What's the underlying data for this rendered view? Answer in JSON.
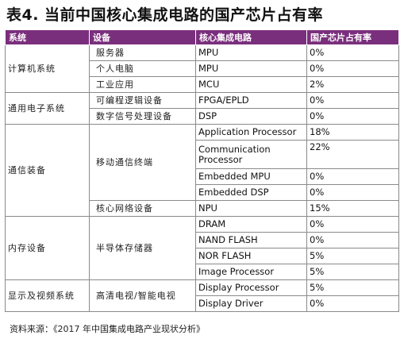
{
  "title": "表4. 当前中国核心集成电路的国产芯片占有率",
  "headers": [
    "系统",
    "设备",
    "核心集成电路",
    "国产芯片占有率"
  ],
  "groups": {
    "computer": {
      "system": "计算机系统",
      "rows": [
        {
          "device": "服务器",
          "chip": "MPU",
          "rate": "0%"
        },
        {
          "device": "个人电脑",
          "chip": "MPU",
          "rate": "0%"
        },
        {
          "device": "工业应用",
          "chip": "MCU",
          "rate": "2%"
        }
      ]
    },
    "electronics": {
      "system": "通用电子系统",
      "rows": [
        {
          "device": "可编程逻辑设备",
          "chip": "FPGA/EPLD",
          "rate": "0%"
        },
        {
          "device": "数字信号处理设备",
          "chip": "DSP",
          "rate": "0%"
        }
      ]
    },
    "comm": {
      "system": "通信装备",
      "mobile_device": "移动通信终端",
      "mobile_rows": [
        {
          "chip": "Application Processor",
          "rate": "18%"
        },
        {
          "chip": "Communication Processor",
          "rate": "22%"
        },
        {
          "chip": "Embedded MPU",
          "rate": "0%"
        },
        {
          "chip": "Embedded DSP",
          "rate": "0%"
        }
      ],
      "network_row": {
        "device": "核心网络设备",
        "chip": "NPU",
        "rate": "15%"
      }
    },
    "memory": {
      "system": "内存设备",
      "device": "半导体存储器",
      "rows": [
        {
          "chip": "DRAM",
          "rate": "0%"
        },
        {
          "chip": "NAND FLASH",
          "rate": "0%"
        },
        {
          "chip": "NOR FLASH",
          "rate": "5%"
        },
        {
          "chip": "Image Processor",
          "rate": "5%"
        }
      ]
    },
    "display": {
      "system": "显示及视频系统",
      "device": "高清电视/智能电视",
      "rows": [
        {
          "chip": "Display Processor",
          "rate": "5%"
        },
        {
          "chip": "Display Driver",
          "rate": "0%"
        }
      ]
    }
  },
  "footer": "资料来源：《2017 年中国集成电路产业现状分析》",
  "colors": {
    "header_bg": "#7a2f7d",
    "header_text": "#ffffff",
    "border": "#8a8a8a"
  }
}
